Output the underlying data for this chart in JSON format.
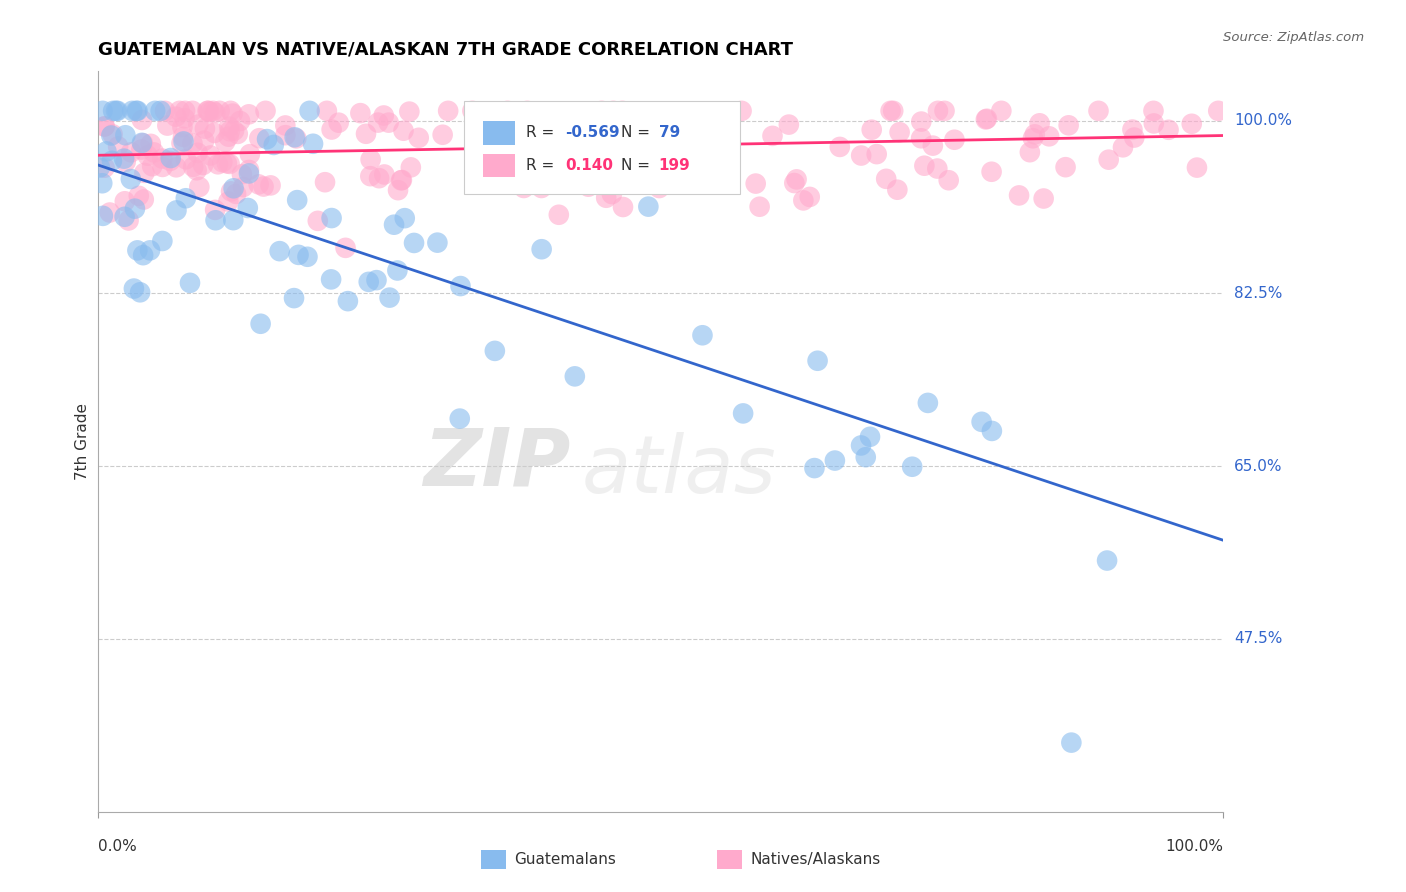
{
  "title": "GUATEMALAN VS NATIVE/ALASKAN 7TH GRADE CORRELATION CHART",
  "source_text": "Source: ZipAtlas.com",
  "ylabel": "7th Grade",
  "xlim": [
    0.0,
    1.0
  ],
  "ylim": [
    0.3,
    1.05
  ],
  "yticks": [
    0.475,
    0.65,
    0.825,
    1.0
  ],
  "ytick_labels": [
    "47.5%",
    "65.0%",
    "82.5%",
    "100.0%"
  ],
  "r_guatemalan": -0.569,
  "n_guatemalan": 79,
  "r_native": 0.14,
  "n_native": 199,
  "blue_color": "#88BBEE",
  "pink_color": "#FFAACC",
  "blue_line_color": "#3366CC",
  "pink_line_color": "#FF3377",
  "background_color": "#FFFFFF",
  "grid_color": "#CCCCCC",
  "blue_line_y0": 0.955,
  "blue_line_y1": 0.575,
  "pink_line_y0": 0.965,
  "pink_line_y1": 0.985
}
